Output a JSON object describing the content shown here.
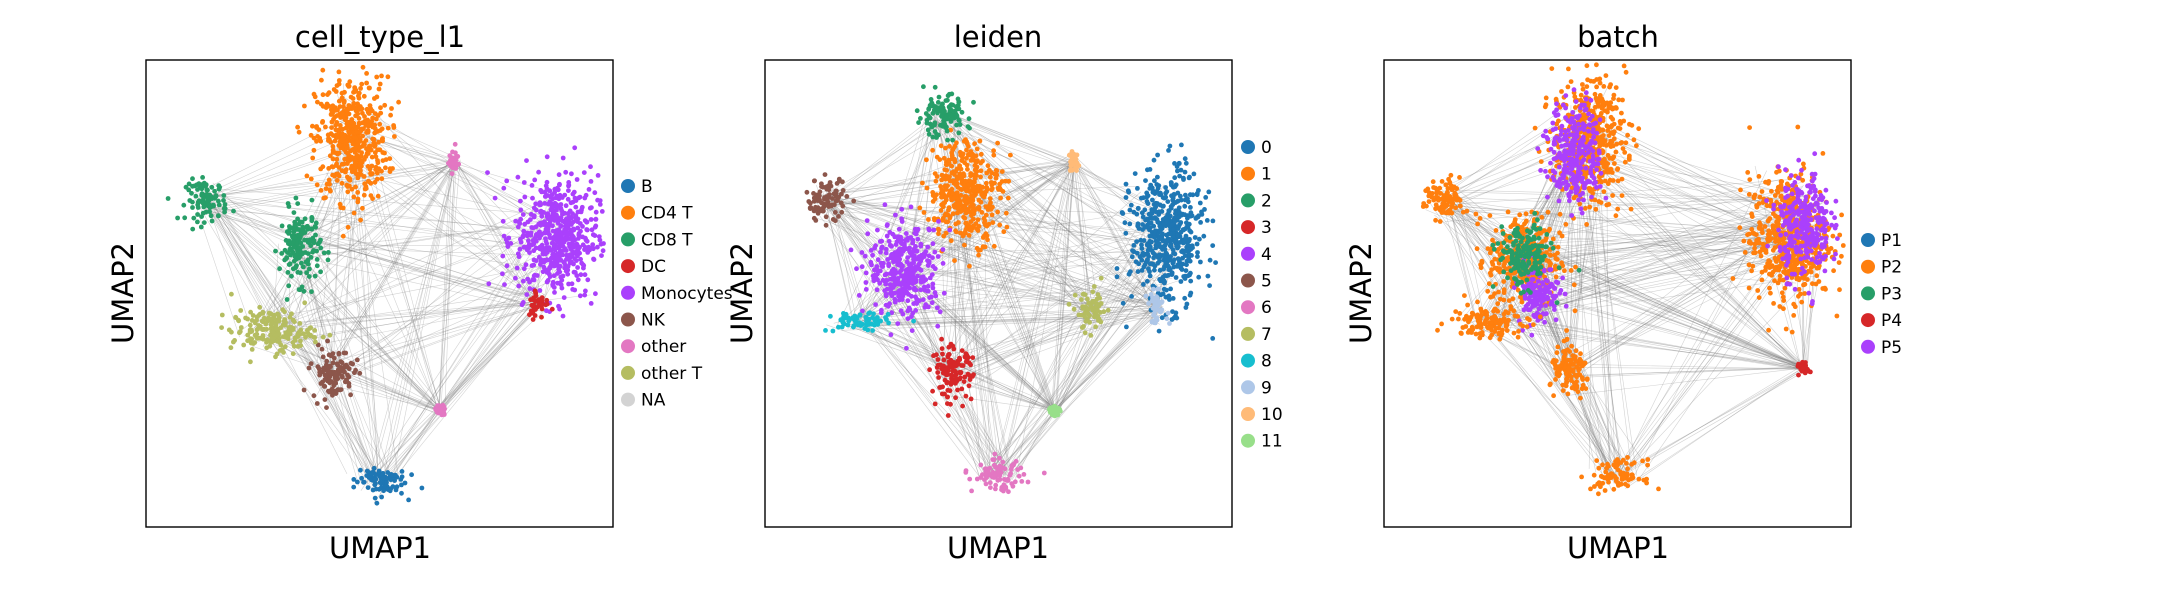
{
  "chart_data": [
    {
      "type": "scatter",
      "title": "cell_type_l1",
      "xlabel": "UMAP1",
      "ylabel": "UMAP2",
      "grid": false,
      "ticks": false,
      "legend": {
        "placement": "right",
        "entries": [
          {
            "label": "B",
            "color": "#1f77b4"
          },
          {
            "label": "CD4 T",
            "color": "#ff7f0e"
          },
          {
            "label": "CD8 T",
            "color": "#279e68"
          },
          {
            "label": "DC",
            "color": "#d62728"
          },
          {
            "label": "Monocytes",
            "color": "#aa40fc"
          },
          {
            "label": "NK",
            "color": "#8c564b"
          },
          {
            "label": "other",
            "color": "#e377c2"
          },
          {
            "label": "other T",
            "color": "#b5bd61"
          },
          {
            "label": "NA",
            "color": "#d3d3d3"
          }
        ]
      },
      "clusters": [
        {
          "label": "CD4 T",
          "x": 0.44,
          "y": 0.83,
          "spread_x": 0.07,
          "spread_y": 0.12
        },
        {
          "label": "CD8 T",
          "x": 0.13,
          "y": 0.7,
          "spread_x": 0.04,
          "spread_y": 0.04
        },
        {
          "label": "CD8 T",
          "x": 0.33,
          "y": 0.6,
          "spread_x": 0.04,
          "spread_y": 0.07
        },
        {
          "label": "Monocytes",
          "x": 0.88,
          "y": 0.62,
          "spread_x": 0.08,
          "spread_y": 0.12
        },
        {
          "label": "DC",
          "x": 0.84,
          "y": 0.48,
          "spread_x": 0.02,
          "spread_y": 0.03
        },
        {
          "label": "NK",
          "x": 0.4,
          "y": 0.33,
          "spread_x": 0.04,
          "spread_y": 0.05
        },
        {
          "label": "other T",
          "x": 0.27,
          "y": 0.42,
          "spread_x": 0.08,
          "spread_y": 0.04
        },
        {
          "label": "B",
          "x": 0.5,
          "y": 0.1,
          "spread_x": 0.05,
          "spread_y": 0.03
        },
        {
          "label": "other",
          "x": 0.66,
          "y": 0.78,
          "spread_x": 0.01,
          "spread_y": 0.02
        },
        {
          "label": "other",
          "x": 0.63,
          "y": 0.25,
          "spread_x": 0.01,
          "spread_y": 0.01
        }
      ]
    },
    {
      "type": "scatter",
      "title": "leiden",
      "xlabel": "UMAP1",
      "ylabel": "UMAP2",
      "grid": false,
      "ticks": false,
      "legend": {
        "placement": "right",
        "entries": [
          {
            "label": "0",
            "color": "#1f77b4"
          },
          {
            "label": "1",
            "color": "#ff7f0e"
          },
          {
            "label": "2",
            "color": "#279e68"
          },
          {
            "label": "3",
            "color": "#d62728"
          },
          {
            "label": "4",
            "color": "#aa40fc"
          },
          {
            "label": "5",
            "color": "#8c564b"
          },
          {
            "label": "6",
            "color": "#e377c2"
          },
          {
            "label": "7",
            "color": "#b5bd61"
          },
          {
            "label": "8",
            "color": "#17becf"
          },
          {
            "label": "9",
            "color": "#aec7e8"
          },
          {
            "label": "10",
            "color": "#ffbb78"
          },
          {
            "label": "11",
            "color": "#98df8a"
          }
        ]
      },
      "clusters": [
        {
          "label": "0",
          "x": 0.86,
          "y": 0.62,
          "spread_x": 0.07,
          "spread_y": 0.13
        },
        {
          "label": "1",
          "x": 0.43,
          "y": 0.72,
          "spread_x": 0.07,
          "spread_y": 0.1
        },
        {
          "label": "2",
          "x": 0.38,
          "y": 0.88,
          "spread_x": 0.05,
          "spread_y": 0.04
        },
        {
          "label": "3",
          "x": 0.4,
          "y": 0.33,
          "spread_x": 0.04,
          "spread_y": 0.05
        },
        {
          "label": "4",
          "x": 0.3,
          "y": 0.55,
          "spread_x": 0.07,
          "spread_y": 0.09
        },
        {
          "label": "5",
          "x": 0.13,
          "y": 0.7,
          "spread_x": 0.04,
          "spread_y": 0.04
        },
        {
          "label": "6",
          "x": 0.5,
          "y": 0.11,
          "spread_x": 0.05,
          "spread_y": 0.03
        },
        {
          "label": "7",
          "x": 0.7,
          "y": 0.46,
          "spread_x": 0.03,
          "spread_y": 0.04
        },
        {
          "label": "8",
          "x": 0.2,
          "y": 0.44,
          "spread_x": 0.06,
          "spread_y": 0.02
        },
        {
          "label": "9",
          "x": 0.84,
          "y": 0.47,
          "spread_x": 0.02,
          "spread_y": 0.03
        },
        {
          "label": "10",
          "x": 0.66,
          "y": 0.78,
          "spread_x": 0.01,
          "spread_y": 0.02
        },
        {
          "label": "11",
          "x": 0.62,
          "y": 0.25,
          "spread_x": 0.01,
          "spread_y": 0.01
        }
      ]
    },
    {
      "type": "scatter",
      "title": "batch",
      "xlabel": "UMAP1",
      "ylabel": "UMAP2",
      "grid": false,
      "ticks": false,
      "legend": {
        "placement": "right",
        "entries": [
          {
            "label": "P1",
            "color": "#1f77b4"
          },
          {
            "label": "P2",
            "color": "#ff7f0e"
          },
          {
            "label": "P3",
            "color": "#279e68"
          },
          {
            "label": "P4",
            "color": "#d62728"
          },
          {
            "label": "P5",
            "color": "#aa40fc"
          }
        ]
      },
      "clusters": [
        {
          "label": "P2",
          "x": 0.44,
          "y": 0.83,
          "spread_x": 0.07,
          "spread_y": 0.12
        },
        {
          "label": "P5",
          "x": 0.41,
          "y": 0.8,
          "spread_x": 0.05,
          "spread_y": 0.1
        },
        {
          "label": "P2",
          "x": 0.13,
          "y": 0.7,
          "spread_x": 0.04,
          "spread_y": 0.04
        },
        {
          "label": "P2",
          "x": 0.3,
          "y": 0.57,
          "spread_x": 0.07,
          "spread_y": 0.09
        },
        {
          "label": "P5",
          "x": 0.33,
          "y": 0.5,
          "spread_x": 0.04,
          "spread_y": 0.06
        },
        {
          "label": "P2",
          "x": 0.87,
          "y": 0.62,
          "spread_x": 0.08,
          "spread_y": 0.12
        },
        {
          "label": "P5",
          "x": 0.9,
          "y": 0.65,
          "spread_x": 0.05,
          "spread_y": 0.1
        },
        {
          "label": "P2",
          "x": 0.4,
          "y": 0.33,
          "spread_x": 0.04,
          "spread_y": 0.05
        },
        {
          "label": "P2",
          "x": 0.22,
          "y": 0.44,
          "spread_x": 0.07,
          "spread_y": 0.03
        },
        {
          "label": "P2",
          "x": 0.5,
          "y": 0.11,
          "spread_x": 0.05,
          "spread_y": 0.03
        },
        {
          "label": "P3",
          "x": 0.3,
          "y": 0.58,
          "spread_x": 0.05,
          "spread_y": 0.06
        },
        {
          "label": "P4",
          "x": 0.9,
          "y": 0.34,
          "spread_x": 0.01,
          "spread_y": 0.01
        }
      ]
    }
  ]
}
